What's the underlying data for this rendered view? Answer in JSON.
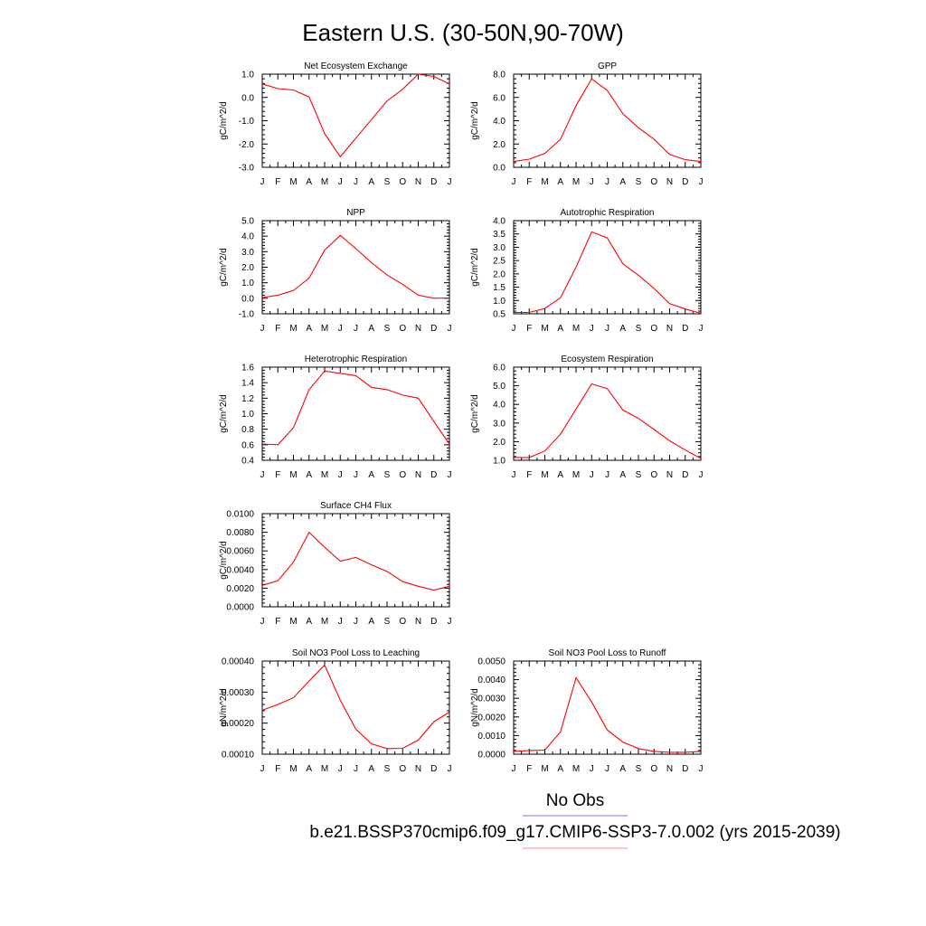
{
  "figure": {
    "title": "Eastern U.S. (30-50N,90-70W)",
    "legend_label": "No Obs",
    "case_label": "b.e21.BSSP370cmip6.f09_g17.CMIP6-SSP3-7.0.002 (yrs 2015-2039)",
    "colors": {
      "model_line": "#ff0000",
      "obs_line": "#7777ff",
      "model_legend": "#ff8888"
    }
  },
  "chart_data": [
    {
      "type": "line",
      "title": "Net Ecosystem Exchange",
      "ylabel": "gC/m^2/d",
      "categories": [
        "J",
        "F",
        "M",
        "A",
        "M",
        "J",
        "J",
        "A",
        "S",
        "O",
        "N",
        "D",
        "J"
      ],
      "ylim": [
        -3.0,
        1.0
      ],
      "yticks": [
        "1.0",
        "0.0",
        "-1.0",
        "-2.0",
        "-3.0"
      ],
      "values": [
        0.58,
        0.38,
        0.32,
        0.02,
        -1.55,
        -2.55,
        -1.75,
        -0.95,
        -0.15,
        0.35,
        1.0,
        0.9,
        0.58
      ]
    },
    {
      "type": "line",
      "title": "GPP",
      "ylabel": "gC/m^2/d",
      "categories": [
        "J",
        "F",
        "M",
        "A",
        "M",
        "J",
        "J",
        "A",
        "S",
        "O",
        "N",
        "D",
        "J"
      ],
      "ylim": [
        0.0,
        8.0
      ],
      "yticks": [
        "8.0",
        "6.0",
        "4.0",
        "2.0",
        "0.0"
      ],
      "values": [
        0.5,
        0.7,
        1.2,
        2.4,
        5.3,
        7.6,
        6.6,
        4.6,
        3.4,
        2.4,
        1.1,
        0.65,
        0.5
      ]
    },
    {
      "type": "line",
      "title": "NPP",
      "ylabel": "gC/m^2/d",
      "categories": [
        "J",
        "F",
        "M",
        "A",
        "M",
        "J",
        "J",
        "A",
        "S",
        "O",
        "N",
        "D",
        "J"
      ],
      "ylim": [
        -1.0,
        5.0
      ],
      "yticks": [
        "5.0",
        "4.0",
        "3.0",
        "2.0",
        "1.0",
        "0.0",
        "-1.0"
      ],
      "values": [
        0.05,
        0.2,
        0.5,
        1.3,
        3.1,
        4.05,
        3.2,
        2.3,
        1.5,
        0.9,
        0.2,
        0.0,
        0.02
      ]
    },
    {
      "type": "line",
      "title": "Autotrophic Respiration",
      "ylabel": "gC/m^2/d",
      "categories": [
        "J",
        "F",
        "M",
        "A",
        "M",
        "J",
        "J",
        "A",
        "S",
        "O",
        "N",
        "D",
        "J"
      ],
      "ylim": [
        0.5,
        4.0
      ],
      "yticks": [
        "4.0",
        "3.5",
        "3.0",
        "2.5",
        "2.0",
        "1.5",
        "1.0",
        "0.5"
      ],
      "values": [
        0.55,
        0.55,
        0.7,
        1.1,
        2.25,
        3.58,
        3.35,
        2.38,
        1.95,
        1.45,
        0.88,
        0.68,
        0.52
      ]
    },
    {
      "type": "line",
      "title": "Heterotrophic Respiration",
      "ylabel": "gC/m^2/d",
      "categories": [
        "J",
        "F",
        "M",
        "A",
        "M",
        "J",
        "J",
        "A",
        "S",
        "O",
        "N",
        "D",
        "J"
      ],
      "ylim": [
        0.4,
        1.6
      ],
      "yticks": [
        "1.6",
        "1.4",
        "1.2",
        "1.0",
        "0.8",
        "0.6",
        "0.4"
      ],
      "values": [
        0.61,
        0.6,
        0.82,
        1.31,
        1.55,
        1.52,
        1.49,
        1.34,
        1.31,
        1.24,
        1.2,
        0.9,
        0.61
      ]
    },
    {
      "type": "line",
      "title": "Ecosystem Respiration",
      "ylabel": "gC/m^2/d",
      "categories": [
        "J",
        "F",
        "M",
        "A",
        "M",
        "J",
        "J",
        "A",
        "S",
        "O",
        "N",
        "D",
        "J"
      ],
      "ylim": [
        1.0,
        6.0
      ],
      "yticks": [
        "6.0",
        "5.0",
        "4.0",
        "3.0",
        "2.0",
        "1.0"
      ],
      "values": [
        1.15,
        1.15,
        1.5,
        2.4,
        3.75,
        5.1,
        4.85,
        3.7,
        3.25,
        2.65,
        2.05,
        1.55,
        1.1
      ]
    },
    {
      "type": "line",
      "title": "Surface CH4 Flux",
      "ylabel": "gC/m^2/d",
      "categories": [
        "J",
        "F",
        "M",
        "A",
        "M",
        "J",
        "J",
        "A",
        "S",
        "O",
        "N",
        "D",
        "J"
      ],
      "ylim": [
        0.0,
        0.01
      ],
      "yticks": [
        "0.0100",
        "0.0080",
        "0.0060",
        "0.0040",
        "0.0020",
        "0.0000"
      ],
      "values": [
        0.0023,
        0.0028,
        0.0048,
        0.008,
        0.0064,
        0.0049,
        0.0053,
        0.0045,
        0.0038,
        0.0027,
        0.0022,
        0.0018,
        0.0022
      ]
    },
    {
      "type": "line",
      "title": "Soil NO3 Pool Loss to Leaching",
      "ylabel": "gN/m^2/d",
      "categories": [
        "J",
        "F",
        "M",
        "A",
        "M",
        "J",
        "J",
        "A",
        "S",
        "O",
        "N",
        "D",
        "J"
      ],
      "ylim": [
        5e-05,
        0.0004
      ],
      "yticks": [
        "0.00040",
        "0.00030",
        "0.00020",
        "0.00010"
      ],
      "values": [
        0.000215,
        0.000237,
        0.000262,
        0.000325,
        0.000385,
        0.000253,
        0.000144,
        8.9e-05,
        7.1e-05,
        7.2e-05,
        0.000103,
        0.000172,
        0.000208
      ]
    },
    {
      "type": "line",
      "title": "Soil NO3 Pool Loss to Runoff",
      "ylabel": "gN/m^2/d",
      "categories": [
        "J",
        "F",
        "M",
        "A",
        "M",
        "J",
        "J",
        "A",
        "S",
        "O",
        "N",
        "D",
        "J"
      ],
      "ylim": [
        0.0,
        0.005
      ],
      "yticks": [
        "0.0050",
        "0.0040",
        "0.0030",
        "0.0020",
        "0.0010",
        "0.0000"
      ],
      "values": [
        0.00015,
        0.0002,
        0.00022,
        0.0012,
        0.0041,
        0.0028,
        0.0013,
        0.00065,
        0.0003,
        0.00015,
        0.0001,
        0.0001,
        0.00015
      ]
    }
  ]
}
